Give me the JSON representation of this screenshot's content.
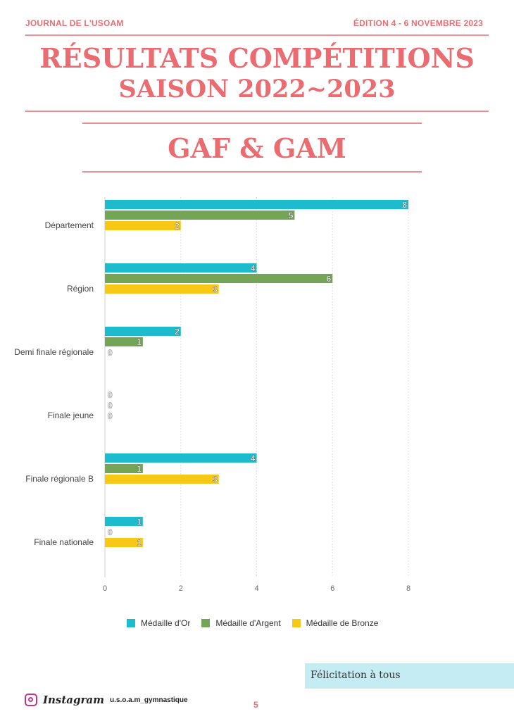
{
  "header": {
    "journal": "JOURNAL DE L'USOAM",
    "edition": "ÉDITION 4 - 6 NOVEMBRE 2023"
  },
  "title": {
    "line1": "RÉSULTATS COMPÉTITIONS",
    "line2": "SAISON 2022~2023",
    "subtitle": "GAF & GAM"
  },
  "chart_data": {
    "type": "bar",
    "orientation": "horizontal",
    "categories": [
      "Département",
      "Région",
      "Demi finale régionale",
      "Finale jeune",
      "Finale régionale B",
      "Finale nationale"
    ],
    "series": [
      {
        "name": "Médaille d'Or",
        "color": "#1cbccc",
        "values": [
          8,
          4,
          2,
          0,
          4,
          1
        ]
      },
      {
        "name": "Médaille d'Argent",
        "color": "#74a557",
        "values": [
          5,
          6,
          1,
          0,
          1,
          0
        ]
      },
      {
        "name": "Médaille de Bronze",
        "color": "#f8c817",
        "values": [
          2,
          3,
          0,
          0,
          3,
          1
        ]
      }
    ],
    "xlim": [
      0,
      8
    ],
    "xticks": [
      0,
      2,
      4,
      6,
      8
    ],
    "grid": true,
    "legend_position": "bottom"
  },
  "footer": {
    "congrats": "Félicitation à tous",
    "instagram_label": "Instagram",
    "instagram_handle": "u.s.o.a.m_gymnastique",
    "page_number": "5"
  }
}
